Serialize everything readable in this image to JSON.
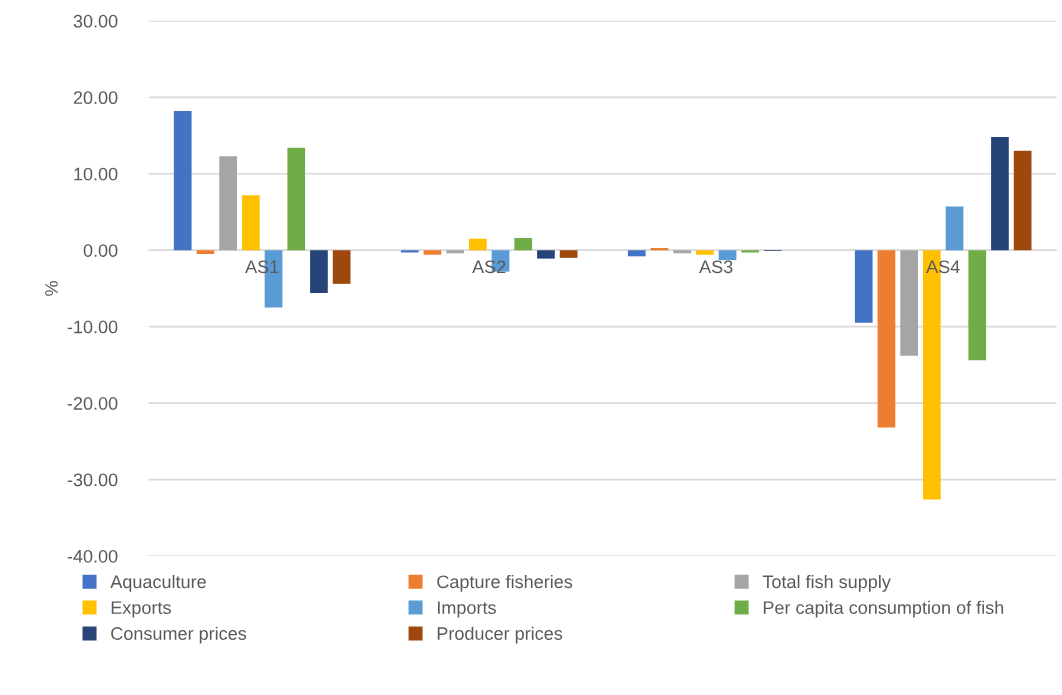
{
  "chart_data": {
    "type": "bar",
    "ylabel": "%",
    "categories": [
      "AS1",
      "AS2",
      "AS3",
      "AS4"
    ],
    "series": [
      {
        "name": "Aquaculture",
        "color": "#4472c4",
        "values": [
          18.2,
          -0.3,
          -0.8,
          -9.5
        ]
      },
      {
        "name": "Capture fisheries",
        "color": "#ed7d31",
        "values": [
          -0.5,
          -0.6,
          0.3,
          -23.2
        ]
      },
      {
        "name": "Total fish supply",
        "color": "#a5a5a5",
        "values": [
          12.3,
          -0.4,
          -0.4,
          -13.8
        ]
      },
      {
        "name": "Exports",
        "color": "#ffc000",
        "values": [
          7.2,
          1.5,
          -0.6,
          -32.6
        ]
      },
      {
        "name": "Imports",
        "color": "#5b9bd5",
        "values": [
          -7.5,
          -2.8,
          -1.3,
          5.7
        ]
      },
      {
        "name": "Per capita consumption of fish",
        "color": "#70ad47",
        "values": [
          13.4,
          1.6,
          -0.3,
          -14.4
        ]
      },
      {
        "name": "Consumer prices",
        "color": "#264478",
        "values": [
          -5.6,
          -1.1,
          -0.1,
          14.8
        ]
      },
      {
        "name": "Producer prices",
        "color": "#9e480e",
        "values": [
          -4.4,
          -1.0,
          0.0,
          13.0
        ]
      }
    ],
    "ylim": [
      -40,
      30
    ],
    "yticks": [
      {
        "value": -40,
        "label": "-40.00"
      },
      {
        "value": -30,
        "label": "-30.00"
      },
      {
        "value": -20,
        "label": "-20.00"
      },
      {
        "value": -10,
        "label": "-10.00"
      },
      {
        "value": 0,
        "label": "0.00"
      },
      {
        "value": 10,
        "label": "10.00"
      },
      {
        "value": 20,
        "label": "20.00"
      },
      {
        "value": 30,
        "label": "30.00"
      }
    ],
    "grid": "y",
    "legend": "bottom"
  }
}
